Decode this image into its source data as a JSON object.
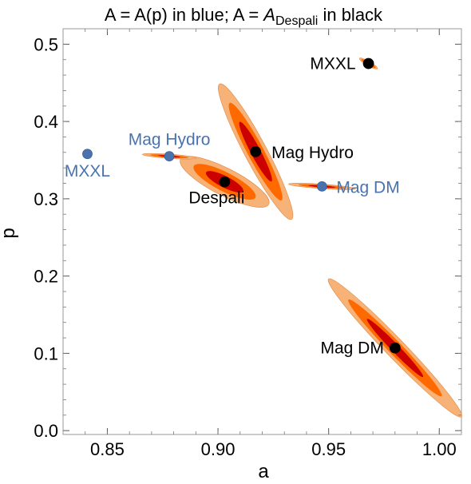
{
  "chart_data": {
    "type": "scatter",
    "title": {
      "prefix": "A = A(p) in blue;  A = ",
      "symbol": "A",
      "subscript": "Despali",
      "suffix": " in black"
    },
    "xlabel": "a",
    "ylabel": "p",
    "xlim": [
      0.83,
      1.01
    ],
    "ylim": [
      -0.005,
      0.52
    ],
    "xticks": [
      {
        "value": 0.85,
        "label": "0.85"
      },
      {
        "value": 0.9,
        "label": "0.90"
      },
      {
        "value": 0.95,
        "label": "0.95"
      },
      {
        "value": 1.0,
        "label": "1.00"
      }
    ],
    "yticks": [
      {
        "value": 0.0,
        "label": "0.0"
      },
      {
        "value": 0.1,
        "label": "0.1"
      },
      {
        "value": 0.2,
        "label": "0.2"
      },
      {
        "value": 0.3,
        "label": "0.3"
      },
      {
        "value": 0.4,
        "label": "0.4"
      },
      {
        "value": 0.5,
        "label": "0.5"
      }
    ],
    "grid": false,
    "contour_colors": [
      "#f7b277",
      "#ff6a00",
      "#cc0000"
    ],
    "series": [
      {
        "name": "A = A(p)",
        "color": "#4a73ad",
        "points": [
          {
            "label": "MXXL",
            "x": 0.841,
            "y": 0.358
          },
          {
            "label": "Mag Hydro",
            "x": 0.878,
            "y": 0.355
          },
          {
            "label": "Mag DM",
            "x": 0.947,
            "y": 0.316
          }
        ]
      },
      {
        "name": "A = A_Despali",
        "color": "#000000",
        "points": [
          {
            "label": "MXXL",
            "x": 0.968,
            "y": 0.475
          },
          {
            "label": "Mag Hydro",
            "x": 0.917,
            "y": 0.361
          },
          {
            "label": "Despali",
            "x": 0.903,
            "y": 0.322
          },
          {
            "label": "Mag DM",
            "x": 0.98,
            "y": 0.107
          }
        ]
      }
    ]
  }
}
